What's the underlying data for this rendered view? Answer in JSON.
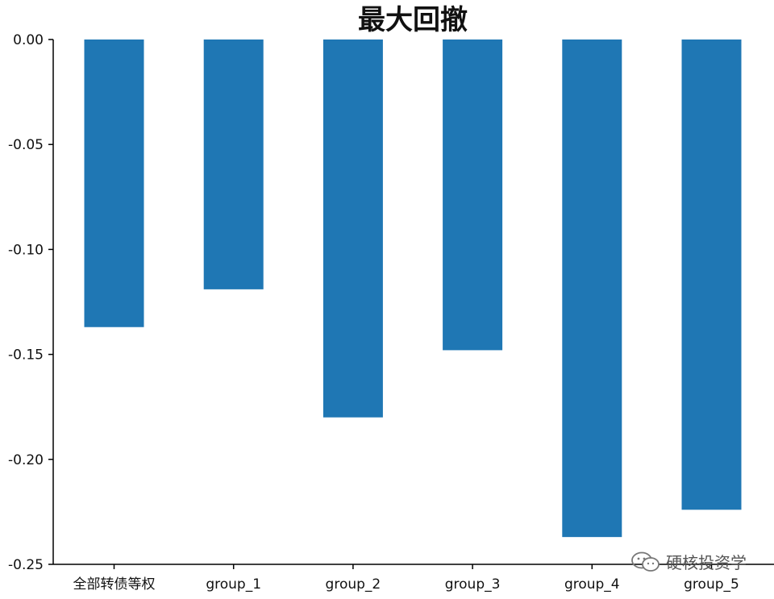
{
  "chart_data": {
    "type": "bar",
    "title": "最大回撤",
    "xlabel": "",
    "ylabel": "",
    "categories": [
      "全部转债等权",
      "group_1",
      "group_2",
      "group_3",
      "group_4",
      "group_5"
    ],
    "values": [
      -0.137,
      -0.119,
      -0.18,
      -0.148,
      -0.237,
      -0.224
    ],
    "ylim": [
      -0.25,
      0.0
    ],
    "yticks": [
      "0.00",
      "-0.05",
      "-0.10",
      "-0.15",
      "-0.20",
      "-0.25"
    ],
    "bar_color": "#1f77b4",
    "grid": false
  },
  "watermark": {
    "text": "硬核投资学",
    "icon": "wechat-icon"
  }
}
